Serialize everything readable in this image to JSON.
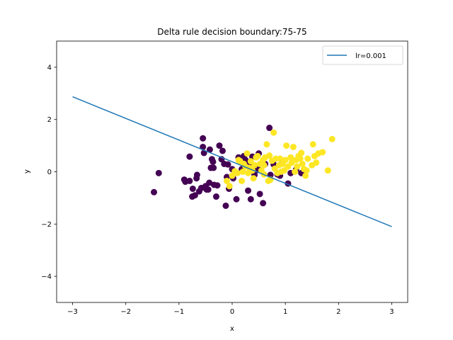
{
  "chart_data": {
    "type": "scatter",
    "title": "Delta rule decision boundary:75-75",
    "xlabel": "x",
    "ylabel": "y",
    "xlim": [
      -3.3,
      3.3
    ],
    "ylim": [
      -5,
      5
    ],
    "xticks": [
      -3,
      -2,
      -1,
      0,
      1,
      2,
      3
    ],
    "yticks": [
      -4,
      -2,
      0,
      2,
      4
    ],
    "grid": false,
    "legend_position": "top-right",
    "colors": {
      "class_a": "#440154",
      "class_b": "#fde725",
      "line": "#1f77b4"
    },
    "line": {
      "name": "lr=0.001",
      "x": [
        -3,
        3
      ],
      "y": [
        2.87,
        -2.1
      ]
    },
    "points_class_a": [
      [
        -1.47,
        -0.78
      ],
      [
        -1.38,
        -0.05
      ],
      [
        -0.9,
        -0.3
      ],
      [
        -0.88,
        -0.38
      ],
      [
        -0.8,
        0.58
      ],
      [
        -0.8,
        -0.35
      ],
      [
        -0.74,
        -0.65
      ],
      [
        -0.75,
        -0.95
      ],
      [
        -0.7,
        -0.9
      ],
      [
        -0.67,
        -0.25
      ],
      [
        -0.66,
        -0.12
      ],
      [
        -0.62,
        -0.75
      ],
      [
        -0.58,
        -0.62
      ],
      [
        -0.55,
        1.28
      ],
      [
        -0.55,
        0.95
      ],
      [
        -0.53,
        0.72
      ],
      [
        -0.5,
        -0.55
      ],
      [
        -0.48,
        -0.68
      ],
      [
        -0.45,
        -0.68
      ],
      [
        -0.43,
        -0.42
      ],
      [
        -0.42,
        0.85
      ],
      [
        -0.4,
        0.15
      ],
      [
        -0.38,
        0.48
      ],
      [
        -0.36,
        0.38
      ],
      [
        -0.35,
        0.15
      ],
      [
        -0.34,
        -0.5
      ],
      [
        -0.3,
        -0.95
      ],
      [
        -0.28,
        -0.52
      ],
      [
        -0.24,
        1.0
      ],
      [
        -0.2,
        0.48
      ],
      [
        -0.18,
        0.8
      ],
      [
        -0.15,
        0.3
      ],
      [
        -0.12,
        -1.3
      ],
      [
        -0.1,
        -0.2
      ],
      [
        -0.08,
        0.28
      ],
      [
        -0.06,
        -0.65
      ],
      [
        0.0,
        0.1
      ],
      [
        0.02,
        -0.25
      ],
      [
        0.08,
        -1.05
      ],
      [
        0.12,
        0.55
      ],
      [
        0.18,
        0.1
      ],
      [
        0.22,
        0.6
      ],
      [
        0.25,
        0.45
      ],
      [
        0.3,
        -0.72
      ],
      [
        0.32,
        0.3
      ],
      [
        0.35,
        -1.05
      ],
      [
        0.38,
        0.58
      ],
      [
        0.42,
        -0.12
      ],
      [
        0.45,
        0.05
      ],
      [
        0.48,
        0.22
      ],
      [
        0.5,
        0.7
      ],
      [
        0.52,
        -0.85
      ],
      [
        0.58,
        -1.2
      ],
      [
        0.62,
        0.3
      ],
      [
        0.7,
        1.68
      ],
      [
        0.72,
        -0.12
      ],
      [
        0.78,
        0.28
      ],
      [
        0.85,
        -0.1
      ],
      [
        0.9,
        -0.15
      ],
      [
        0.95,
        0.4
      ],
      [
        1.05,
        -0.45
      ],
      [
        1.1,
        -0.05
      ],
      [
        1.2,
        0.08
      ],
      [
        1.3,
        -0.05
      ]
    ],
    "points_class_b": [
      [
        -0.1,
        -0.35
      ],
      [
        -0.05,
        -0.55
      ],
      [
        0.0,
        -0.15
      ],
      [
        0.05,
        0.02
      ],
      [
        0.1,
        -0.05
      ],
      [
        0.15,
        0.4
      ],
      [
        0.18,
        -0.35
      ],
      [
        0.2,
        0.0
      ],
      [
        0.25,
        0.2
      ],
      [
        0.28,
        0.7
      ],
      [
        0.3,
        -0.05
      ],
      [
        0.32,
        0.15
      ],
      [
        0.35,
        0.4
      ],
      [
        0.38,
        0.05
      ],
      [
        0.4,
        -0.25
      ],
      [
        0.42,
        0.25
      ],
      [
        0.45,
        0.55
      ],
      [
        0.48,
        0.6
      ],
      [
        0.52,
        0.3
      ],
      [
        0.55,
        0.05
      ],
      [
        0.58,
        0.45
      ],
      [
        0.6,
        0.25
      ],
      [
        0.62,
        0.55
      ],
      [
        0.65,
        1.05
      ],
      [
        0.68,
        -0.35
      ],
      [
        0.7,
        0.62
      ],
      [
        0.72,
        -0.3
      ],
      [
        0.75,
        0.42
      ],
      [
        0.78,
        1.5
      ],
      [
        0.8,
        0.12
      ],
      [
        0.82,
        0.5
      ],
      [
        0.85,
        -0.05
      ],
      [
        0.88,
        0.25
      ],
      [
        0.9,
        0.5
      ],
      [
        0.92,
        0.0
      ],
      [
        0.95,
        0.3
      ],
      [
        0.98,
        0.05
      ],
      [
        1.0,
        0.45
      ],
      [
        1.02,
        1.0
      ],
      [
        1.05,
        0.2
      ],
      [
        1.1,
        0.55
      ],
      [
        1.12,
        0.35
      ],
      [
        1.15,
        0.95
      ],
      [
        1.18,
        0.0
      ],
      [
        1.2,
        0.45
      ],
      [
        1.22,
        0.2
      ],
      [
        1.25,
        0.6
      ],
      [
        1.28,
        0.5
      ],
      [
        1.3,
        0.72
      ],
      [
        1.32,
        0.3
      ],
      [
        1.35,
        0.1
      ],
      [
        1.38,
        -0.15
      ],
      [
        1.42,
        0.5
      ],
      [
        1.5,
        0.25
      ],
      [
        1.52,
        1.05
      ],
      [
        1.55,
        0.6
      ],
      [
        1.58,
        0.35
      ],
      [
        1.62,
        0.7
      ],
      [
        1.7,
        0.75
      ],
      [
        1.8,
        0.05
      ],
      [
        1.88,
        1.25
      ],
      [
        1.4,
        0.05
      ],
      [
        0.6,
        -0.1
      ],
      [
        0.12,
        0.45
      ],
      [
        0.22,
        0.3
      ]
    ]
  }
}
